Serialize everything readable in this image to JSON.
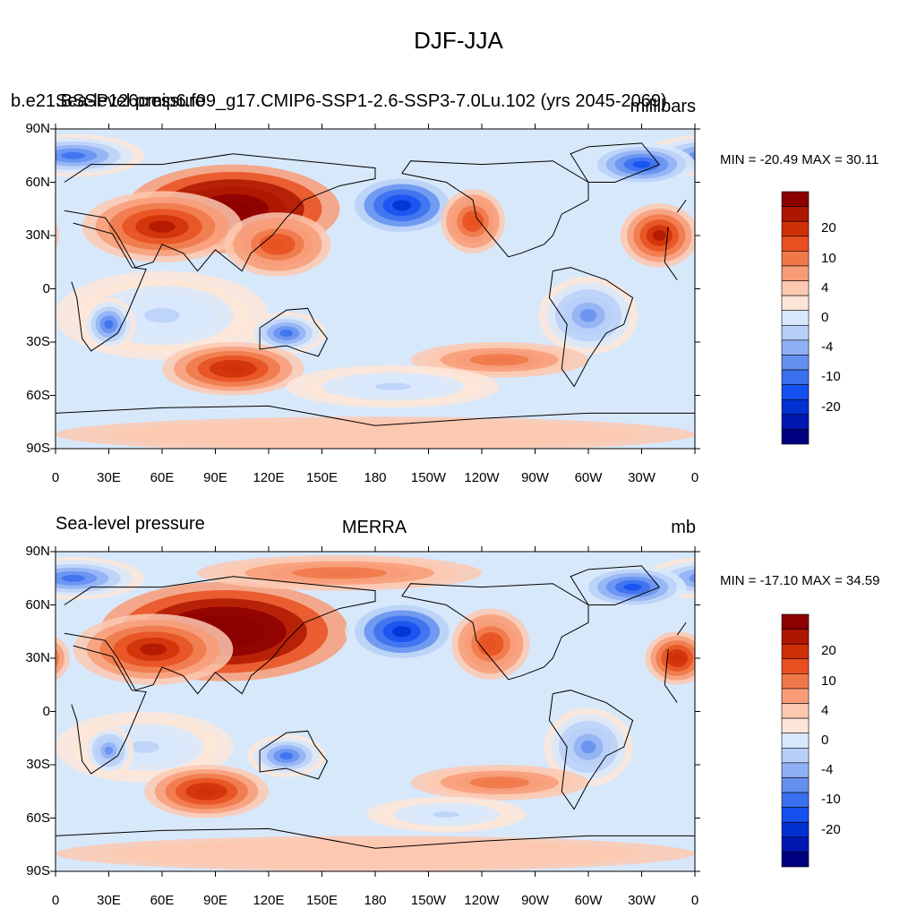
{
  "title": "DJF-JJA",
  "panels": [
    {
      "left_title": "b.e21.BSSP126cmip6.f09_g17.CMIP6-SSP1-2.6-SSP3-7.0Lu.102 (yrs 2045-2069)",
      "left_title_overlay": "Sea-level pressure",
      "center_title": "",
      "right_title": "millibars",
      "min_max": "MIN = -20.49 MAX =  30.11"
    },
    {
      "left_title": "Sea-level pressure",
      "left_title_overlay": "",
      "center_title": "MERRA",
      "right_title": "mb",
      "min_max": "MIN = -17.10 MAX =  34.59"
    }
  ],
  "colors": {
    "levels": [
      "#000080",
      "#0018b0",
      "#0030d0",
      "#1550f0",
      "#3a70f0",
      "#6490f0",
      "#90b0f5",
      "#b8d0f8",
      "#d8e8fb",
      "#fde6d8",
      "#fdc8b0",
      "#f89c78",
      "#f07848",
      "#e85020",
      "#d03008",
      "#ae1600",
      "#8c0000"
    ],
    "land_outline": "#000000"
  },
  "chart_data": [
    {
      "type": "heatmap",
      "title": "DJF-JJA",
      "subtitle": "b.e21.BSSP126cmip6.f09_g17.CMIP6-SSP1-2.6-SSP3-7.0Lu.102 (yrs 2045-2069)",
      "variable": "Sea-level pressure",
      "units": "millibars",
      "x_ticks": [
        "0",
        "30E",
        "60E",
        "90E",
        "120E",
        "150E",
        "180",
        "150W",
        "120W",
        "90W",
        "60W",
        "30W",
        "0"
      ],
      "y_ticks": [
        "90N",
        "60N",
        "30N",
        "0",
        "30S",
        "60S",
        "90S"
      ],
      "xlim": [
        0,
        360
      ],
      "ylim": [
        -90,
        90
      ],
      "colorbar_labels": [
        "20",
        "10",
        "4",
        "0",
        "-4",
        "-10",
        "-20"
      ],
      "min": -20.49,
      "max": 30.11,
      "features": [
        {
          "lon": 100,
          "lat": 45,
          "rx": 60,
          "ry": 25,
          "value": 22
        },
        {
          "lon": 60,
          "lat": 35,
          "rx": 45,
          "ry": 20,
          "value": 12
        },
        {
          "lon": 125,
          "lat": 25,
          "rx": 30,
          "ry": 18,
          "value": 8
        },
        {
          "lon": 195,
          "lat": 47,
          "rx": 32,
          "ry": 18,
          "value": -16
        },
        {
          "lon": 235,
          "lat": 38,
          "rx": 18,
          "ry": 18,
          "value": 8
        },
        {
          "lon": 340,
          "lat": 30,
          "rx": 22,
          "ry": 18,
          "value": 12
        },
        {
          "lon": 10,
          "lat": 75,
          "rx": 40,
          "ry": 12,
          "value": -10
        },
        {
          "lon": 330,
          "lat": 70,
          "rx": 30,
          "ry": 12,
          "value": -12
        },
        {
          "lon": 60,
          "lat": -15,
          "rx": 60,
          "ry": 25,
          "value": -4
        },
        {
          "lon": 30,
          "lat": -20,
          "rx": 15,
          "ry": 15,
          "value": -10
        },
        {
          "lon": 130,
          "lat": -25,
          "rx": 22,
          "ry": 12,
          "value": -10
        },
        {
          "lon": 300,
          "lat": -15,
          "rx": 28,
          "ry": 22,
          "value": -8
        },
        {
          "lon": 100,
          "lat": -45,
          "rx": 40,
          "ry": 15,
          "value": 10
        },
        {
          "lon": 250,
          "lat": -40,
          "rx": 50,
          "ry": 10,
          "value": 6
        },
        {
          "lon": 190,
          "lat": -55,
          "rx": 60,
          "ry": 12,
          "value": -4
        },
        {
          "lon": 180,
          "lat": -82,
          "rx": 180,
          "ry": 10,
          "value": 2
        }
      ]
    },
    {
      "type": "heatmap",
      "title": "MERRA",
      "variable": "Sea-level pressure",
      "units": "mb",
      "x_ticks": [
        "0",
        "30E",
        "60E",
        "90E",
        "120E",
        "150E",
        "180",
        "150W",
        "120W",
        "90W",
        "60W",
        "30W",
        "0"
      ],
      "y_ticks": [
        "90N",
        "60N",
        "30N",
        "0",
        "30S",
        "60S",
        "90S"
      ],
      "xlim": [
        0,
        360
      ],
      "ylim": [
        -90,
        90
      ],
      "colorbar_labels": [
        "20",
        "10",
        "4",
        "0",
        "-4",
        "-10",
        "-20"
      ],
      "min": -17.1,
      "max": 34.59,
      "features": [
        {
          "lon": 95,
          "lat": 45,
          "rx": 70,
          "ry": 28,
          "value": 24
        },
        {
          "lon": 160,
          "lat": 78,
          "rx": 80,
          "ry": 10,
          "value": 6
        },
        {
          "lon": 55,
          "lat": 35,
          "rx": 45,
          "ry": 20,
          "value": 12
        },
        {
          "lon": 195,
          "lat": 45,
          "rx": 32,
          "ry": 18,
          "value": -16
        },
        {
          "lon": 245,
          "lat": 38,
          "rx": 22,
          "ry": 20,
          "value": 8
        },
        {
          "lon": 350,
          "lat": 30,
          "rx": 18,
          "ry": 15,
          "value": 10
        },
        {
          "lon": 10,
          "lat": 75,
          "rx": 40,
          "ry": 12,
          "value": -10
        },
        {
          "lon": 325,
          "lat": 70,
          "rx": 30,
          "ry": 12,
          "value": -12
        },
        {
          "lon": 50,
          "lat": -20,
          "rx": 50,
          "ry": 20,
          "value": -4
        },
        {
          "lon": 30,
          "lat": -22,
          "rx": 14,
          "ry": 14,
          "value": -8
        },
        {
          "lon": 130,
          "lat": -25,
          "rx": 22,
          "ry": 12,
          "value": -10
        },
        {
          "lon": 300,
          "lat": -20,
          "rx": 25,
          "ry": 22,
          "value": -8
        },
        {
          "lon": 85,
          "lat": -45,
          "rx": 35,
          "ry": 15,
          "value": 10
        },
        {
          "lon": 250,
          "lat": -40,
          "rx": 50,
          "ry": 10,
          "value": 6
        },
        {
          "lon": 220,
          "lat": -58,
          "rx": 45,
          "ry": 10,
          "value": -4
        },
        {
          "lon": 180,
          "lat": -80,
          "rx": 180,
          "ry": 10,
          "value": 2
        }
      ]
    }
  ]
}
